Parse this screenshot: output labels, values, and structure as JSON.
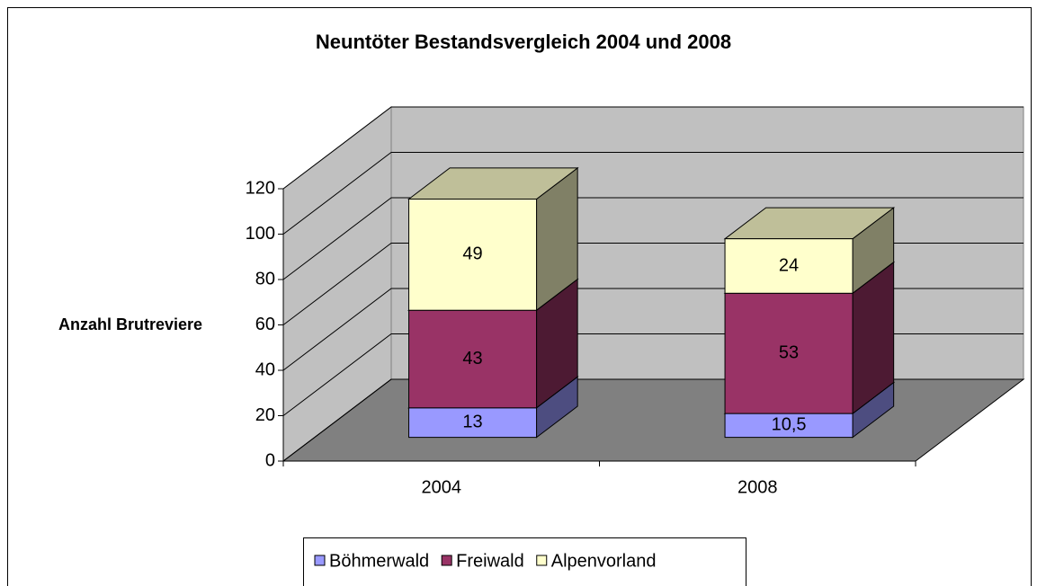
{
  "chart_data": {
    "type": "bar3d_stacked",
    "title": "Neuntöter Bestandsvergleich 2004 und 2008",
    "y_label": "Anzahl Brutreviere",
    "categories": [
      "2004",
      "2008"
    ],
    "series": [
      {
        "name": "Böhmerwald",
        "color": "#9999ff",
        "values": [
          13,
          10.5
        ],
        "value_labels": [
          "13",
          "10,5"
        ]
      },
      {
        "name": "Freiwald",
        "color": "#993366",
        "values": [
          43,
          53
        ]
      },
      {
        "name": "Alpenvorland",
        "color": "#ffffcc",
        "values": [
          49,
          24
        ]
      }
    ],
    "ylim": [
      0,
      120
    ],
    "yticks": [
      0,
      20,
      40,
      60,
      80,
      100,
      120
    ],
    "grid": true,
    "legend": "bottom"
  }
}
